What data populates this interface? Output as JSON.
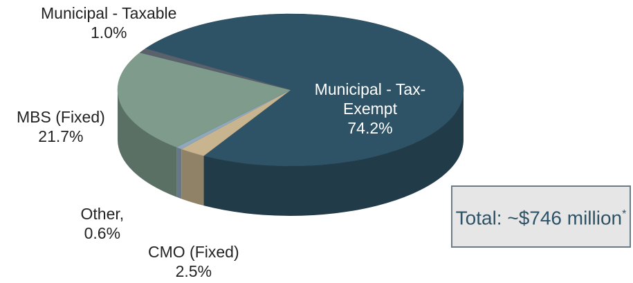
{
  "chart_data": {
    "type": "pie",
    "categories": [
      "Municipal - Tax-Exempt",
      "CMO (Fixed)",
      "Other,",
      "MBS (Fixed)",
      "Municipal - Taxable"
    ],
    "values": [
      74.2,
      2.5,
      0.6,
      21.7,
      1.0
    ],
    "value_labels": [
      "74.2%",
      "2.5%",
      "0.6%",
      "21.7%",
      "1.0%"
    ],
    "colors": [
      "#2e5266",
      "#c8b48e",
      "#8fa8bb",
      "#7e9b8b",
      "#59626c"
    ],
    "annotation": "Total: ~$746 million",
    "annotation_mark": "*"
  }
}
